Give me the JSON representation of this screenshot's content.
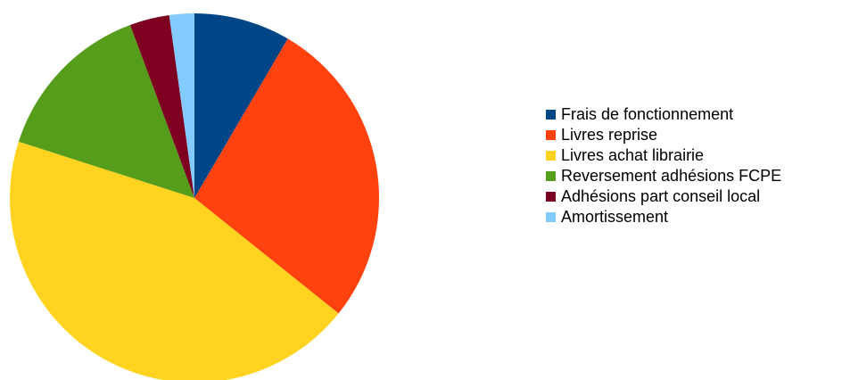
{
  "chart_data": {
    "type": "pie",
    "title": "",
    "legend_position": "right",
    "start_angle": "top",
    "direction": "clockwise",
    "slices": [
      {
        "label": "Frais de fonctionnement",
        "value": 8.5,
        "color": "#004586"
      },
      {
        "label": "Livres reprise",
        "value": 27.5,
        "color": "#ff420e"
      },
      {
        "label": "Livres achat librairie",
        "value": 44.5,
        "color": "#ffd320"
      },
      {
        "label": "Reversement adhésions FCPE",
        "value": 14.5,
        "color": "#579d1c"
      },
      {
        "label": "Adhésions part conseil local",
        "value": 3.5,
        "color": "#7e0021"
      },
      {
        "label": "Amortissement",
        "value": 2.2,
        "color": "#83caff"
      }
    ]
  }
}
